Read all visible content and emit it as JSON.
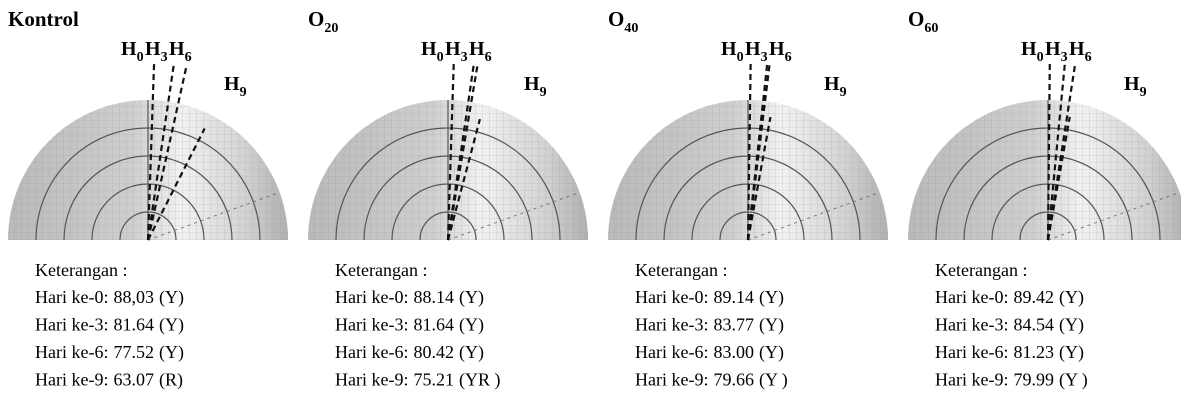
{
  "markers": [
    {
      "base": "H",
      "sub": "0"
    },
    {
      "base": "H",
      "sub": "3"
    },
    {
      "base": "H",
      "sub": "6"
    },
    {
      "base": "H",
      "sub": "9"
    }
  ],
  "panels": [
    {
      "title": {
        "base": "Kontrol"
      },
      "note": "Keterangan :",
      "rows": [
        {
          "day": "Hari ke-0:",
          "value": "88,03",
          "code": "(Y)"
        },
        {
          "day": "Hari ke-3:",
          "value": "81.64",
          "code": "(Y)"
        },
        {
          "day": "Hari ke-6:",
          "value": "77.52",
          "code": "(Y)"
        },
        {
          "day": "Hari ke-9:",
          "value": "63.07",
          "code": "(R)"
        }
      ]
    },
    {
      "title": {
        "base": "O",
        "sub": "20"
      },
      "note": "Keterangan :",
      "rows": [
        {
          "day": "Hari ke-0:",
          "value": "88.14",
          "code": "(Y)"
        },
        {
          "day": "Hari ke-3:",
          "value": "81.64",
          "code": "(Y)"
        },
        {
          "day": "Hari ke-6:",
          "value": "80.42",
          "code": "(Y)"
        },
        {
          "day": "Hari ke-9:",
          "value": "75.21",
          "code": "(YR )"
        }
      ]
    },
    {
      "title": {
        "base": "O",
        "sub": "40"
      },
      "note": "Keterangan :",
      "rows": [
        {
          "day": "Hari ke-0:",
          "value": "89.14",
          "code": "(Y)"
        },
        {
          "day": "Hari ke-3:",
          "value": "83.77",
          "code": "(Y)"
        },
        {
          "day": "Hari ke-6:",
          "value": "83.00",
          "code": "(Y)"
        },
        {
          "day": "Hari ke-9:",
          "value": "79.66",
          "code": "(Y )"
        }
      ]
    },
    {
      "title": {
        "base": "O",
        "sub": "60"
      },
      "note": "Keterangan :",
      "rows": [
        {
          "day": "Hari ke-0:",
          "value": "89.42",
          "code": "(Y)"
        },
        {
          "day": "Hari ke-3:",
          "value": "84.54",
          "code": "(Y)"
        },
        {
          "day": "Hari ke-6:",
          "value": "81.23",
          "code": "(Y)"
        },
        {
          "day": "Hari ke-9:",
          "value": "79.99",
          "code": "(Y )"
        }
      ]
    }
  ]
}
